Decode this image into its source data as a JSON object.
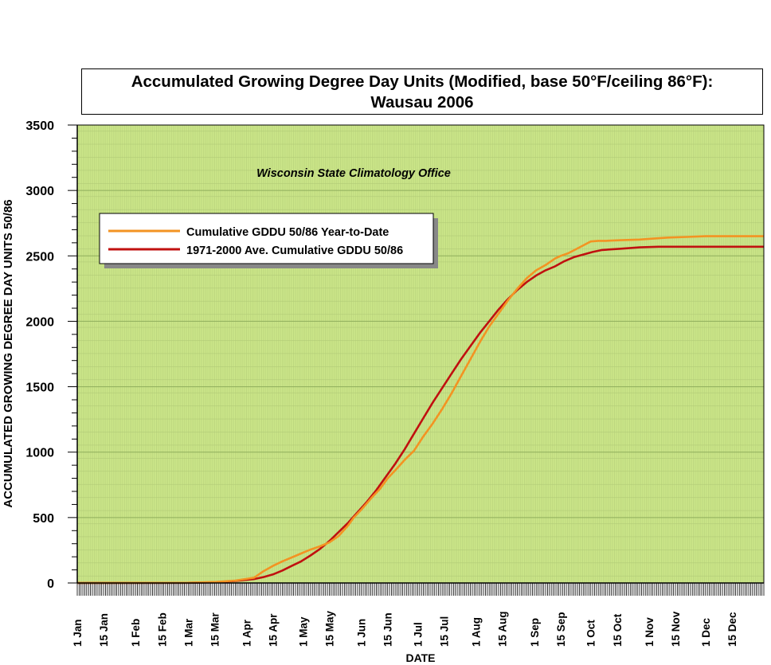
{
  "chart_data": {
    "type": "line",
    "title": "Accumulated Growing Degree Day Units (Modified, base 50°F/ceiling 86°F):",
    "subtitle": "Wausau 2006",
    "annotation": "Wisconsin State Climatology Office",
    "xlabel": "DATE",
    "ylabel": "ACCUMULATED GROWING DEGREE DAY UNITS 50/86",
    "ylim": [
      0,
      3500
    ],
    "xlim": [
      1,
      366
    ],
    "yticks": [
      "0",
      "500",
      "1000",
      "1500",
      "2000",
      "2500",
      "3000",
      "3500"
    ],
    "xticks": [
      {
        "day": 1,
        "label": "1 Jan"
      },
      {
        "day": 15,
        "label": "15 Jan"
      },
      {
        "day": 32,
        "label": "1 Feb"
      },
      {
        "day": 46,
        "label": "15 Feb"
      },
      {
        "day": 60,
        "label": "1 Mar"
      },
      {
        "day": 74,
        "label": "15 Mar"
      },
      {
        "day": 91,
        "label": "1 Apr"
      },
      {
        "day": 105,
        "label": "15 Apr"
      },
      {
        "day": 121,
        "label": "1 May"
      },
      {
        "day": 135,
        "label": "15 May"
      },
      {
        "day": 152,
        "label": "1 Jun"
      },
      {
        "day": 166,
        "label": "15 Jun"
      },
      {
        "day": 182,
        "label": "1 Jul"
      },
      {
        "day": 196,
        "label": "15 Jul"
      },
      {
        "day": 213,
        "label": "1 Aug"
      },
      {
        "day": 227,
        "label": "15 Aug"
      },
      {
        "day": 244,
        "label": "1 Sep"
      },
      {
        "day": 258,
        "label": "15 Sep"
      },
      {
        "day": 274,
        "label": "1 Oct"
      },
      {
        "day": 288,
        "label": "15 Oct"
      },
      {
        "day": 305,
        "label": "1 Nov"
      },
      {
        "day": 319,
        "label": "15 Nov"
      },
      {
        "day": 335,
        "label": "1 Dec"
      },
      {
        "day": 349,
        "label": "15 Dec"
      }
    ],
    "grid": true,
    "legend_position": "upper-left",
    "colors": {
      "plot_bg": "#cde88a",
      "grid_minor": "#b5cf7a",
      "grid_major": "#8fae5c"
    },
    "series": [
      {
        "name": "Cumulative GDDU 50/86 Year-to-Date",
        "color": "#f39322",
        "x": [
          1,
          60,
          75,
          85,
          95,
          100,
          105,
          110,
          115,
          120,
          125,
          130,
          135,
          140,
          145,
          148,
          152,
          155,
          158,
          162,
          166,
          170,
          175,
          180,
          185,
          190,
          195,
          200,
          205,
          210,
          215,
          220,
          225,
          230,
          235,
          240,
          245,
          250,
          255,
          258,
          262,
          266,
          270,
          274,
          278,
          282,
          290,
          300,
          305,
          315,
          325,
          335,
          345,
          366
        ],
        "y": [
          0,
          2,
          8,
          18,
          40,
          90,
          130,
          165,
          195,
          225,
          255,
          280,
          310,
          360,
          440,
          500,
          560,
          610,
          660,
          720,
          800,
          860,
          940,
          1010,
          1120,
          1220,
          1330,
          1450,
          1580,
          1710,
          1840,
          1960,
          2060,
          2160,
          2250,
          2330,
          2390,
          2430,
          2480,
          2500,
          2520,
          2550,
          2580,
          2610,
          2615,
          2615,
          2620,
          2625,
          2630,
          2640,
          2645,
          2650,
          2650,
          2650
        ]
      },
      {
        "name": "1971-2000 Ave. Cumulative GDDU 50/86",
        "color": "#c0100f",
        "x": [
          1,
          60,
          75,
          85,
          95,
          100,
          105,
          110,
          115,
          120,
          125,
          130,
          135,
          140,
          145,
          150,
          155,
          160,
          165,
          170,
          175,
          180,
          185,
          190,
          195,
          200,
          205,
          210,
          215,
          220,
          225,
          230,
          235,
          240,
          245,
          250,
          255,
          260,
          265,
          270,
          275,
          280,
          290,
          300,
          310,
          320,
          335,
          366
        ],
        "y": [
          0,
          1,
          5,
          15,
          30,
          45,
          65,
          95,
          130,
          165,
          210,
          260,
          320,
          390,
          460,
          540,
          620,
          710,
          810,
          910,
          1020,
          1140,
          1260,
          1380,
          1490,
          1600,
          1710,
          1810,
          1910,
          2000,
          2090,
          2170,
          2240,
          2300,
          2350,
          2390,
          2420,
          2460,
          2490,
          2510,
          2530,
          2545,
          2555,
          2565,
          2570,
          2570,
          2570,
          2570
        ]
      }
    ]
  }
}
